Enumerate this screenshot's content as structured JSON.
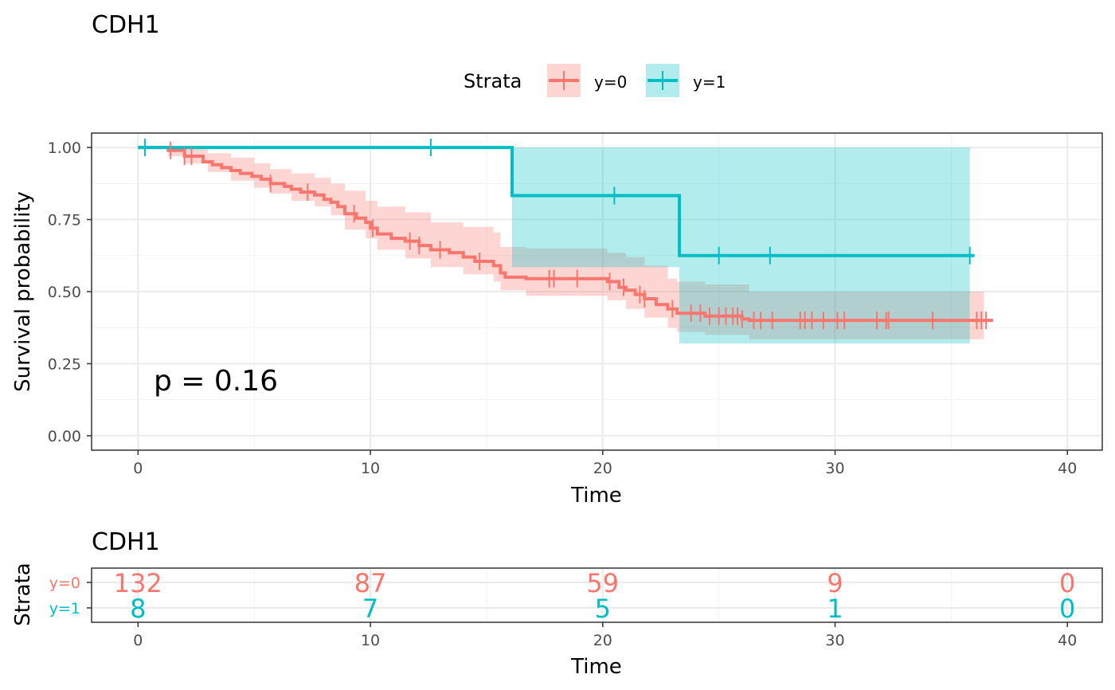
{
  "chart_data": [
    {
      "type": "line",
      "title": "CDH1",
      "xlabel": "Time",
      "ylabel": "Survival probability",
      "xlim": [
        -2,
        41.5
      ],
      "ylim": [
        -0.05,
        1.05
      ],
      "x_ticks": [
        0,
        10,
        20,
        30,
        40
      ],
      "x_tick_labels": [
        "0",
        "10",
        "20",
        "30",
        "40"
      ],
      "y_ticks": [
        0,
        0.25,
        0.5,
        0.75,
        1
      ],
      "y_tick_labels": [
        "0.00",
        "0.25",
        "0.50",
        "0.75",
        "1.00"
      ],
      "grid": true,
      "legend": {
        "title": "Strata",
        "position": "top"
      },
      "annotation": "p = 0.16",
      "series": [
        {
          "name": "y=0",
          "color": "#F8766D",
          "steps": [
            [
              0,
              1
            ],
            [
              1.3,
              0.99
            ],
            [
              2.0,
              0.97
            ],
            [
              2.8,
              0.95
            ],
            [
              3.2,
              0.94
            ],
            [
              3.6,
              0.93
            ],
            [
              4.0,
              0.92
            ],
            [
              4.4,
              0.91
            ],
            [
              4.9,
              0.9
            ],
            [
              5.3,
              0.89
            ],
            [
              5.7,
              0.875
            ],
            [
              6.3,
              0.865
            ],
            [
              6.6,
              0.855
            ],
            [
              7.0,
              0.845
            ],
            [
              7.6,
              0.835
            ],
            [
              8.0,
              0.82
            ],
            [
              8.3,
              0.81
            ],
            [
              8.6,
              0.795
            ],
            [
              8.9,
              0.77
            ],
            [
              9.4,
              0.755
            ],
            [
              9.8,
              0.74
            ],
            [
              10.0,
              0.72
            ],
            [
              10.3,
              0.7
            ],
            [
              10.9,
              0.685
            ],
            [
              11.5,
              0.675
            ],
            [
              12.1,
              0.66
            ],
            [
              12.6,
              0.645
            ],
            [
              13.4,
              0.635
            ],
            [
              14.0,
              0.62
            ],
            [
              14.5,
              0.605
            ],
            [
              15.3,
              0.59
            ],
            [
              15.6,
              0.565
            ],
            [
              15.8,
              0.55
            ],
            [
              16.7,
              0.545
            ],
            [
              20.2,
              0.535
            ],
            [
              20.7,
              0.515
            ],
            [
              21.0,
              0.505
            ],
            [
              21.4,
              0.49
            ],
            [
              21.8,
              0.475
            ],
            [
              22.3,
              0.455
            ],
            [
              22.8,
              0.44
            ],
            [
              23.2,
              0.425
            ],
            [
              24.4,
              0.415
            ],
            [
              26.0,
              0.405
            ],
            [
              26.3,
              0.4
            ]
          ],
          "end_x": 36.8,
          "ci_lower": [
            [
              0,
              1
            ],
            [
              1.3,
              0.97
            ],
            [
              2.0,
              0.945
            ],
            [
              3.0,
              0.915
            ],
            [
              4.0,
              0.885
            ],
            [
              5.0,
              0.86
            ],
            [
              5.7,
              0.84
            ],
            [
              6.6,
              0.815
            ],
            [
              7.6,
              0.795
            ],
            [
              8.3,
              0.765
            ],
            [
              8.9,
              0.715
            ],
            [
              9.8,
              0.685
            ],
            [
              10.3,
              0.645
            ],
            [
              11.5,
              0.615
            ],
            [
              12.6,
              0.585
            ],
            [
              14.0,
              0.56
            ],
            [
              15.3,
              0.535
            ],
            [
              15.6,
              0.505
            ],
            [
              16.7,
              0.485
            ],
            [
              20.2,
              0.47
            ],
            [
              21.0,
              0.44
            ],
            [
              21.8,
              0.41
            ],
            [
              22.8,
              0.375
            ],
            [
              23.2,
              0.36
            ],
            [
              24.4,
              0.35
            ],
            [
              26.3,
              0.335
            ],
            [
              36.4,
              0.335
            ]
          ],
          "ci_upper": [
            [
              0,
              1
            ],
            [
              1.3,
              1.0
            ],
            [
              2.0,
              0.995
            ],
            [
              3.0,
              0.98
            ],
            [
              4.0,
              0.965
            ],
            [
              5.0,
              0.945
            ],
            [
              5.7,
              0.925
            ],
            [
              6.6,
              0.91
            ],
            [
              7.6,
              0.895
            ],
            [
              8.3,
              0.875
            ],
            [
              8.9,
              0.85
            ],
            [
              9.8,
              0.815
            ],
            [
              10.3,
              0.795
            ],
            [
              11.5,
              0.775
            ],
            [
              12.6,
              0.74
            ],
            [
              14.0,
              0.725
            ],
            [
              15.3,
              0.705
            ],
            [
              15.6,
              0.655
            ],
            [
              16.7,
              0.65
            ],
            [
              20.2,
              0.635
            ],
            [
              21.0,
              0.62
            ],
            [
              21.8,
              0.59
            ],
            [
              22.8,
              0.545
            ],
            [
              23.2,
              0.535
            ],
            [
              24.4,
              0.525
            ],
            [
              26.3,
              0.5
            ],
            [
              36.4,
              0.5
            ]
          ],
          "censor_times": [
            1.4,
            2.0,
            2.3,
            5.7,
            7.3,
            9.3,
            10.1,
            11.7,
            12.1,
            13.0,
            14.7,
            17.7,
            17.9,
            18.9,
            20.3,
            20.9,
            21.6,
            21.8,
            23.0,
            23.8,
            24.2,
            24.6,
            25.0,
            25.3,
            25.6,
            25.8,
            26.0,
            26.5,
            26.8,
            27.3,
            28.5,
            28.7,
            29.0,
            29.5,
            30.1,
            30.4,
            31.8,
            32.2,
            32.3,
            34.2,
            36.1,
            36.3,
            36.5
          ]
        },
        {
          "name": "y=1",
          "color": "#00BFC4",
          "steps": [
            [
              0,
              1
            ],
            [
              16.1,
              0.833
            ],
            [
              23.3,
              0.625
            ]
          ],
          "end_x": 36.0,
          "ci_lower": [
            [
              0,
              1
            ],
            [
              16.1,
              0.585
            ],
            [
              23.3,
              0.32
            ],
            [
              35.8,
              0.32
            ]
          ],
          "ci_upper": [
            [
              0,
              1
            ],
            [
              16.1,
              1.0
            ],
            [
              23.3,
              1.0
            ],
            [
              35.8,
              1.0
            ]
          ],
          "censor_times": [
            0.3,
            12.6,
            20.5,
            25.0,
            27.2,
            35.8
          ]
        }
      ]
    },
    {
      "type": "table",
      "title": "CDH1",
      "xlabel": "Time",
      "ylabel": "Strata",
      "x_ticks": [
        0,
        10,
        20,
        30,
        40
      ],
      "x_tick_labels": [
        "0",
        "10",
        "20",
        "30",
        "40"
      ],
      "rows": [
        {
          "name": "y=0",
          "color": "#F8766D",
          "values": [
            "132",
            "87",
            "59",
            "9",
            "0"
          ]
        },
        {
          "name": "y=1",
          "color": "#00BFC4",
          "values": [
            "8",
            "7",
            "5",
            "1",
            "0"
          ]
        }
      ]
    }
  ]
}
